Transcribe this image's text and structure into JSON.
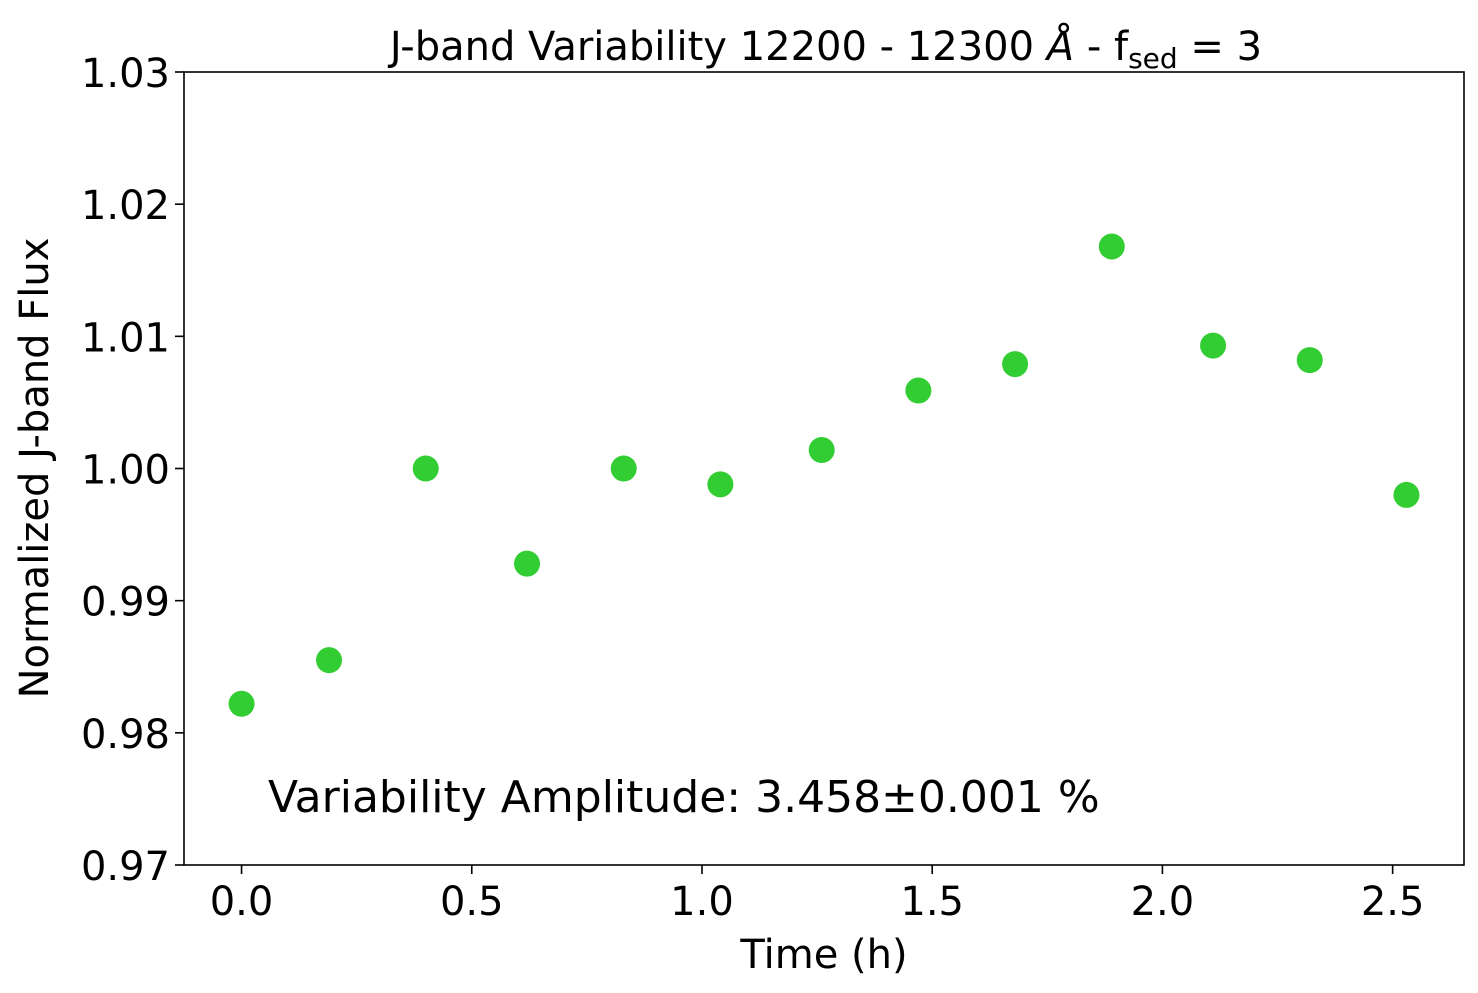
{
  "chart_data": {
    "type": "scatter",
    "title": {
      "main": "J-band Variability 12200 - 12300 ",
      "angstrom": "Å",
      "sep": " - f",
      "subscript": "sed",
      "suffix": " = 3"
    },
    "xlabel": "Time (h)",
    "ylabel": "Normalized J-band Flux",
    "xlim": [
      -0.125,
      2.655
    ],
    "ylim": [
      0.97,
      1.03
    ],
    "x_ticks": [
      0.0,
      0.5,
      1.0,
      1.5,
      2.0,
      2.5
    ],
    "x_tick_labels": [
      "0.0",
      "0.5",
      "1.0",
      "1.5",
      "2.0",
      "2.5"
    ],
    "y_ticks": [
      0.97,
      0.98,
      0.99,
      1.0,
      1.01,
      1.02,
      1.03
    ],
    "y_tick_labels": [
      "0.97",
      "0.98",
      "0.99",
      "1.00",
      "1.01",
      "1.02",
      "1.03"
    ],
    "grid": false,
    "marker_color": "#32cd32",
    "series": [
      {
        "x": [
          0.0,
          0.19,
          0.4,
          0.62,
          0.83,
          1.04,
          1.26,
          1.47,
          1.68,
          1.89,
          2.11,
          2.32,
          2.53
        ],
        "y": [
          0.9822,
          0.9855,
          1.0,
          0.9928,
          1.0,
          0.9988,
          1.0014,
          1.0059,
          1.0079,
          1.0168,
          1.0093,
          1.0082,
          0.998
        ]
      }
    ],
    "annotation": "Variability Amplitude: 3.458±0.001 %"
  }
}
